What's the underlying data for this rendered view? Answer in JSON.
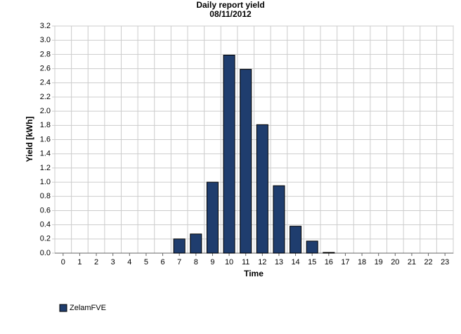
{
  "chart_data": {
    "type": "bar",
    "title": "Daily report yield",
    "subtitle": "08/11/2012",
    "x_label": "Time",
    "y_label": "Yield [kWh]",
    "categories": [
      "0",
      "1",
      "2",
      "3",
      "4",
      "5",
      "6",
      "7",
      "8",
      "9",
      "10",
      "11",
      "12",
      "13",
      "14",
      "15",
      "16",
      "17",
      "18",
      "19",
      "20",
      "21",
      "22",
      "23"
    ],
    "series": [
      {
        "name": "ZelamFVE",
        "color": "#1f3d6e",
        "values": [
          0,
          0,
          0,
          0,
          0,
          0,
          0,
          0.2,
          0.27,
          1.0,
          2.79,
          2.59,
          1.81,
          0.95,
          0.38,
          0.17,
          0.01,
          0,
          0,
          0,
          0,
          0,
          0,
          0
        ]
      }
    ],
    "ylim": [
      0,
      3.2
    ],
    "yticks": [
      {
        "value": 0,
        "label": "0.0"
      },
      0.2,
      0.4,
      0.6,
      0.8,
      {
        "value": 1,
        "label": "1.0"
      },
      1.2,
      1.4,
      1.6,
      1.8,
      {
        "value": 2,
        "label": "2.0"
      },
      2.2,
      2.4,
      2.6,
      2.8,
      {
        "value": 3,
        "label": "3.0"
      },
      3.2
    ],
    "grid": true
  }
}
